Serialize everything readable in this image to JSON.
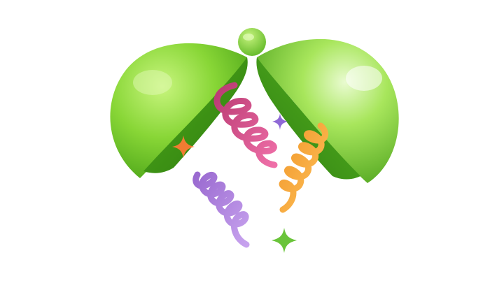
{
  "scene": {
    "subject": "open-capsule-with-confetti",
    "colors": {
      "background": "#ffffff",
      "capsule_light": "#b6ec6a",
      "capsule_mid": "#7ccf2c",
      "capsule_dark": "#3f9a12",
      "capsule_inner": "#3a8c12",
      "spiral_pink": "#d94c8c",
      "spiral_pink_light": "#f07bb3",
      "spiral_purple": "#a67ad6",
      "spiral_purple_light": "#cfb0ef",
      "spiral_orange": "#f2a234",
      "spiral_orange_light": "#ffd27a",
      "star_orange": "#f27c32",
      "star_purple": "#8f69d6",
      "star_green": "#6ac43a"
    }
  }
}
